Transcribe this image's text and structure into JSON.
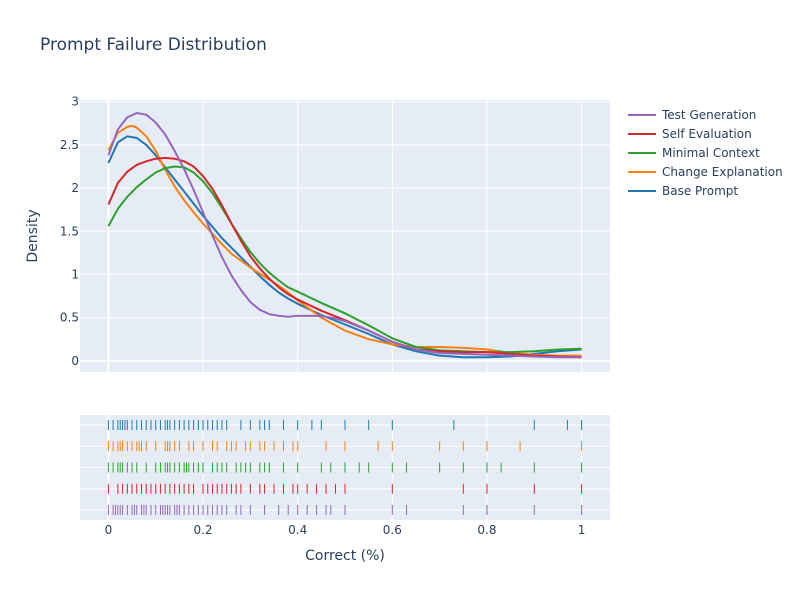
{
  "chart_data": {
    "type": "line",
    "title": "Prompt Failure Distribution",
    "xlabel": "Correct (%)",
    "ylabel": "Density",
    "xlim": [
      -0.06,
      1.06
    ],
    "ylim": [
      -0.13,
      3.02
    ],
    "x_ticks": [
      0,
      0.2,
      0.4,
      0.6,
      0.8,
      1
    ],
    "x_tick_labels": [
      "0",
      "0.2",
      "0.4",
      "0.6",
      "0.8",
      "1"
    ],
    "y_ticks": [
      0,
      0.5,
      1,
      1.5,
      2,
      2.5,
      3
    ],
    "y_tick_labels": [
      "0",
      "0.5",
      "1",
      "1.5",
      "2",
      "2.5",
      "3"
    ],
    "grid": true,
    "legend_position": "top-right",
    "background": "#e5ecf6",
    "series": [
      {
        "name": "Test Generation",
        "color": "#9467bd",
        "x": [
          0,
          0.02,
          0.04,
          0.06,
          0.08,
          0.1,
          0.12,
          0.14,
          0.16,
          0.18,
          0.2,
          0.22,
          0.24,
          0.26,
          0.28,
          0.3,
          0.32,
          0.34,
          0.36,
          0.38,
          0.4,
          0.42,
          0.44,
          0.46,
          0.48,
          0.5,
          0.55,
          0.6,
          0.65,
          0.7,
          0.75,
          0.8,
          0.85,
          0.9,
          0.95,
          1
        ],
        "y": [
          2.38,
          2.68,
          2.82,
          2.87,
          2.85,
          2.76,
          2.62,
          2.43,
          2.22,
          1.98,
          1.72,
          1.45,
          1.2,
          0.99,
          0.82,
          0.68,
          0.59,
          0.54,
          0.52,
          0.51,
          0.52,
          0.52,
          0.52,
          0.51,
          0.49,
          0.46,
          0.35,
          0.22,
          0.13,
          0.09,
          0.08,
          0.07,
          0.06,
          0.05,
          0.04,
          0.04
        ],
        "rug": [
          0,
          0.01,
          0.015,
          0.02,
          0.025,
          0.03,
          0.04,
          0.05,
          0.055,
          0.06,
          0.07,
          0.075,
          0.08,
          0.09,
          0.1,
          0.11,
          0.115,
          0.12,
          0.125,
          0.13,
          0.14,
          0.145,
          0.15,
          0.16,
          0.17,
          0.18,
          0.19,
          0.2,
          0.21,
          0.22,
          0.23,
          0.24,
          0.25,
          0.27,
          0.28,
          0.3,
          0.33,
          0.36,
          0.38,
          0.4,
          0.42,
          0.44,
          0.46,
          0.47,
          0.5,
          0.6,
          0.63,
          0.75,
          0.8,
          0.9,
          1
        ]
      },
      {
        "name": "Self Evaluation",
        "color": "#d62728",
        "x": [
          0,
          0.02,
          0.04,
          0.06,
          0.08,
          0.1,
          0.12,
          0.14,
          0.16,
          0.18,
          0.2,
          0.22,
          0.24,
          0.26,
          0.28,
          0.3,
          0.32,
          0.34,
          0.36,
          0.38,
          0.4,
          0.45,
          0.5,
          0.55,
          0.6,
          0.65,
          0.7,
          0.75,
          0.8,
          0.85,
          0.9,
          0.95,
          1
        ],
        "y": [
          1.81,
          2.06,
          2.19,
          2.27,
          2.31,
          2.34,
          2.35,
          2.34,
          2.31,
          2.25,
          2.14,
          1.99,
          1.8,
          1.59,
          1.39,
          1.21,
          1.07,
          0.95,
          0.85,
          0.77,
          0.71,
          0.58,
          0.47,
          0.35,
          0.22,
          0.13,
          0.11,
          0.1,
          0.1,
          0.08,
          0.06,
          0.05,
          0.04
        ],
        "rug": [
          0,
          0.02,
          0.03,
          0.04,
          0.05,
          0.06,
          0.07,
          0.08,
          0.09,
          0.1,
          0.11,
          0.12,
          0.13,
          0.14,
          0.15,
          0.16,
          0.17,
          0.18,
          0.2,
          0.21,
          0.22,
          0.23,
          0.24,
          0.25,
          0.26,
          0.27,
          0.28,
          0.3,
          0.32,
          0.33,
          0.35,
          0.37,
          0.39,
          0.4,
          0.42,
          0.44,
          0.46,
          0.48,
          0.5,
          0.6,
          0.75,
          0.8,
          0.9,
          1
        ]
      },
      {
        "name": "Minimal Context",
        "color": "#2ca02c",
        "x": [
          0,
          0.02,
          0.04,
          0.06,
          0.08,
          0.1,
          0.12,
          0.14,
          0.16,
          0.18,
          0.2,
          0.22,
          0.24,
          0.26,
          0.28,
          0.3,
          0.32,
          0.34,
          0.36,
          0.38,
          0.4,
          0.45,
          0.5,
          0.55,
          0.6,
          0.65,
          0.7,
          0.75,
          0.8,
          0.85,
          0.9,
          0.95,
          1
        ],
        "y": [
          1.56,
          1.76,
          1.9,
          2.01,
          2.1,
          2.18,
          2.23,
          2.25,
          2.24,
          2.18,
          2.08,
          1.94,
          1.77,
          1.59,
          1.42,
          1.26,
          1.13,
          1.02,
          0.93,
          0.85,
          0.8,
          0.67,
          0.55,
          0.41,
          0.26,
          0.16,
          0.12,
          0.11,
          0.1,
          0.1,
          0.11,
          0.13,
          0.14
        ],
        "rug": [
          0,
          0.01,
          0.02,
          0.025,
          0.03,
          0.04,
          0.05,
          0.06,
          0.08,
          0.1,
          0.11,
          0.12,
          0.125,
          0.13,
          0.14,
          0.15,
          0.16,
          0.165,
          0.17,
          0.18,
          0.19,
          0.2,
          0.22,
          0.23,
          0.24,
          0.25,
          0.27,
          0.28,
          0.29,
          0.3,
          0.32,
          0.33,
          0.34,
          0.37,
          0.4,
          0.45,
          0.47,
          0.5,
          0.53,
          0.55,
          0.6,
          0.63,
          0.7,
          0.75,
          0.8,
          0.83,
          0.9,
          1
        ]
      },
      {
        "name": "Change Explanation",
        "color": "#ff7f0e",
        "x": [
          0,
          0.02,
          0.04,
          0.05,
          0.06,
          0.08,
          0.1,
          0.12,
          0.14,
          0.16,
          0.18,
          0.2,
          0.22,
          0.24,
          0.26,
          0.28,
          0.3,
          0.32,
          0.34,
          0.36,
          0.38,
          0.4,
          0.45,
          0.5,
          0.55,
          0.6,
          0.65,
          0.7,
          0.75,
          0.8,
          0.85,
          0.9,
          0.95,
          1
        ],
        "y": [
          2.44,
          2.64,
          2.71,
          2.72,
          2.7,
          2.6,
          2.43,
          2.21,
          2.02,
          1.86,
          1.72,
          1.59,
          1.47,
          1.35,
          1.24,
          1.16,
          1.08,
          1.01,
          0.94,
          0.87,
          0.79,
          0.7,
          0.5,
          0.35,
          0.25,
          0.19,
          0.16,
          0.16,
          0.15,
          0.13,
          0.09,
          0.07,
          0.06,
          0.06
        ],
        "rug": [
          0,
          0.01,
          0.02,
          0.025,
          0.03,
          0.04,
          0.05,
          0.06,
          0.065,
          0.07,
          0.08,
          0.1,
          0.12,
          0.125,
          0.13,
          0.14,
          0.15,
          0.17,
          0.18,
          0.2,
          0.22,
          0.23,
          0.25,
          0.26,
          0.27,
          0.29,
          0.3,
          0.32,
          0.33,
          0.35,
          0.37,
          0.39,
          0.4,
          0.46,
          0.5,
          0.57,
          0.6,
          0.7,
          0.75,
          0.8,
          0.87,
          1
        ]
      },
      {
        "name": "Base Prompt",
        "color": "#1f77b4",
        "x": [
          0,
          0.02,
          0.04,
          0.06,
          0.08,
          0.1,
          0.12,
          0.14,
          0.16,
          0.18,
          0.2,
          0.22,
          0.24,
          0.26,
          0.28,
          0.3,
          0.32,
          0.34,
          0.36,
          0.38,
          0.4,
          0.45,
          0.5,
          0.55,
          0.6,
          0.65,
          0.7,
          0.75,
          0.8,
          0.85,
          0.9,
          0.95,
          1
        ],
        "y": [
          2.29,
          2.53,
          2.6,
          2.58,
          2.5,
          2.38,
          2.24,
          2.1,
          1.96,
          1.82,
          1.68,
          1.55,
          1.42,
          1.31,
          1.2,
          1.09,
          0.98,
          0.88,
          0.79,
          0.72,
          0.66,
          0.53,
          0.42,
          0.31,
          0.19,
          0.11,
          0.06,
          0.04,
          0.04,
          0.05,
          0.08,
          0.11,
          0.13
        ],
        "rug": [
          0,
          0.01,
          0.02,
          0.025,
          0.03,
          0.035,
          0.04,
          0.05,
          0.06,
          0.07,
          0.08,
          0.09,
          0.1,
          0.11,
          0.12,
          0.125,
          0.13,
          0.14,
          0.15,
          0.16,
          0.17,
          0.18,
          0.19,
          0.2,
          0.21,
          0.22,
          0.23,
          0.24,
          0.25,
          0.28,
          0.3,
          0.32,
          0.33,
          0.34,
          0.37,
          0.4,
          0.43,
          0.45,
          0.5,
          0.55,
          0.6,
          0.73,
          0.9,
          0.97,
          1
        ]
      }
    ]
  }
}
